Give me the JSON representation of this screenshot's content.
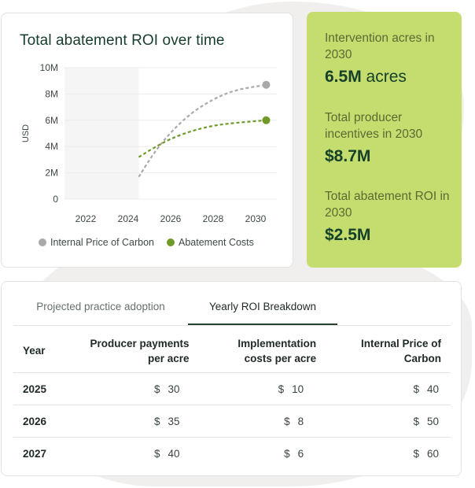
{
  "chart": {
    "title": "Total abatement ROI over time",
    "legend": [
      {
        "label": "Internal Price of Carbon",
        "color": "#a9a9a9"
      },
      {
        "label": "Abatement Costs",
        "color": "#6f9a29"
      }
    ]
  },
  "chart_data": {
    "type": "line",
    "title": "Total abatement ROI over time",
    "xlabel": "",
    "ylabel": "USD",
    "x_ticks": [
      "2022",
      "2024",
      "2026",
      "2028",
      "2030"
    ],
    "y_ticks": [
      "0",
      "2M",
      "4M",
      "6M",
      "8M",
      "10M"
    ],
    "xlim": [
      2021,
      2031
    ],
    "ylim": [
      0,
      10000000
    ],
    "grid": true,
    "legend_position": "bottom",
    "series": [
      {
        "name": "Internal Price of Carbon",
        "color": "#a9a9a9",
        "style": "dashed",
        "x": [
          2024.5,
          2025.2,
          2026.0,
          2027.0,
          2028.0,
          2029.0,
          2030.5
        ],
        "y": [
          1700000,
          3500000,
          5100000,
          6600000,
          7600000,
          8300000,
          8700000
        ],
        "end_marker": true
      },
      {
        "name": "Abatement Costs",
        "color": "#6f9a29",
        "style": "dashed",
        "x": [
          2024.5,
          2025.2,
          2026.0,
          2027.0,
          2028.0,
          2029.0,
          2030.5
        ],
        "y": [
          3200000,
          3900000,
          4600000,
          5200000,
          5600000,
          5800000,
          6000000
        ],
        "end_marker": true
      }
    ]
  },
  "stats": [
    {
      "label": "Intervention acres in 2030",
      "value": "6.5M",
      "unit": " acres"
    },
    {
      "label": "Total producer incentives in 2030",
      "value": "$8.7M",
      "unit": ""
    },
    {
      "label": "Total abatement ROI in 2030",
      "value": "$2.5M",
      "unit": ""
    }
  ],
  "tabs": {
    "adoption": "Projected practice adoption",
    "yearly": "Yearly ROI Breakdown"
  },
  "table": {
    "headers": {
      "year": "Year",
      "payments_1": "Producer payments",
      "payments_2": "per acre",
      "impl_1": "Implementation",
      "impl_2": "costs per acre",
      "carbon_1": "Internal Price of",
      "carbon_2": "Carbon"
    },
    "currency": "$",
    "rows": [
      {
        "year": "2025",
        "payments": "30",
        "impl": "10",
        "carbon": "40"
      },
      {
        "year": "2026",
        "payments": "35",
        "impl": "8",
        "carbon": "50"
      },
      {
        "year": "2027",
        "payments": "40",
        "impl": "6",
        "carbon": "60"
      }
    ]
  }
}
